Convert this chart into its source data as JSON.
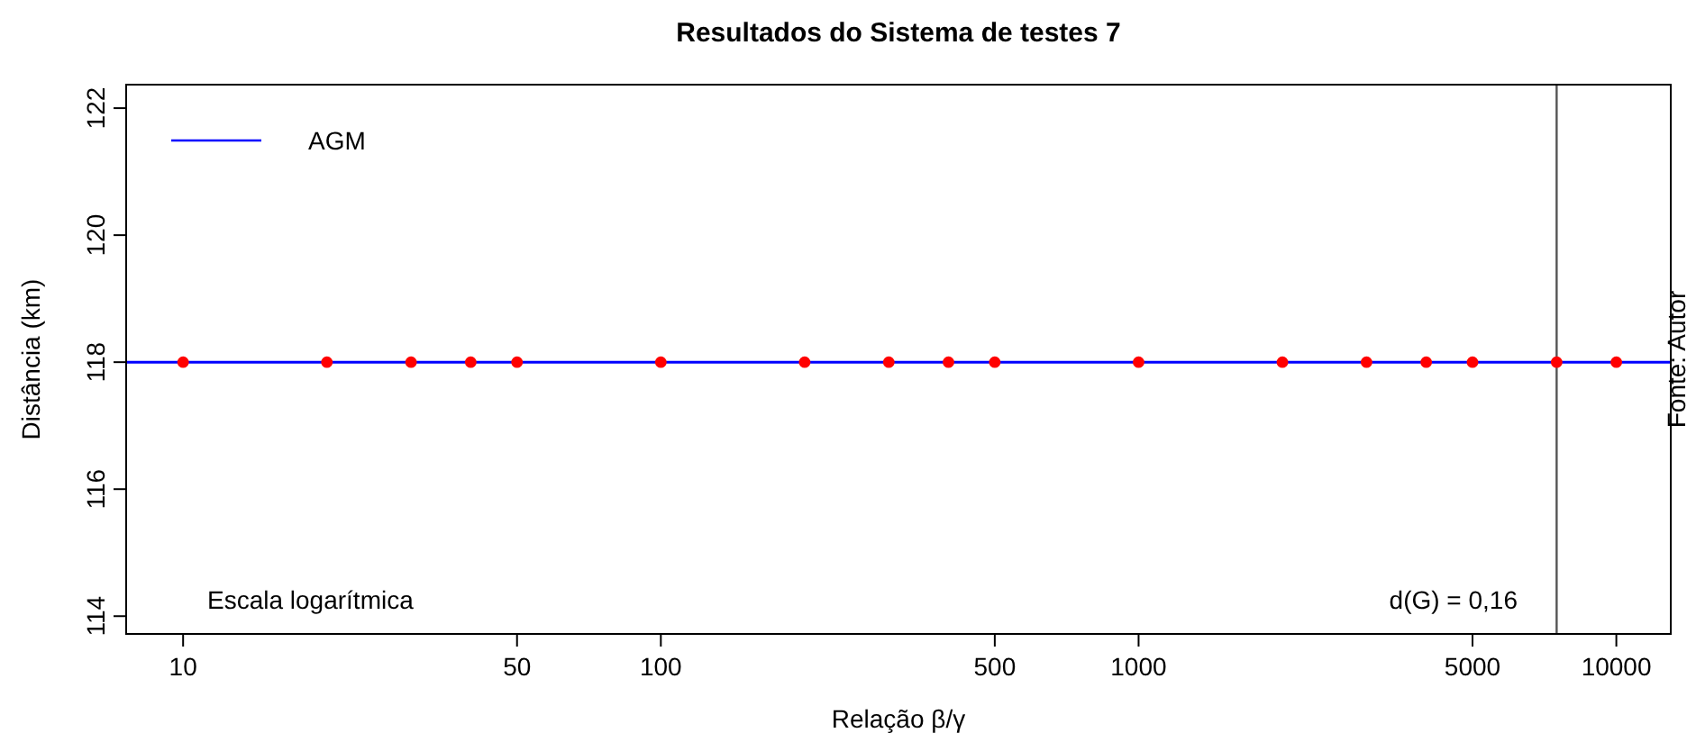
{
  "chart_data": {
    "type": "scatter",
    "title": "Resultados do Sistema de testes 7",
    "xlabel": "Relação  β/γ",
    "ylabel": "Distância (km)",
    "log": "x",
    "xlim": [
      7.6,
      13000
    ],
    "ylim": [
      113.72,
      122.37
    ],
    "xticks": [
      10,
      50,
      100,
      500,
      1000,
      5000,
      10000
    ],
    "yticks": [
      114,
      116,
      118,
      120,
      122
    ],
    "grid": false,
    "legend": "top left",
    "marker": "circle",
    "series": [
      {
        "name": "AGM",
        "type": "line",
        "color": "#0000ff",
        "marker": "none",
        "x": [
          7.6,
          13000
        ],
        "values": [
          118,
          118
        ]
      },
      {
        "color": "#ff0000",
        "x": [
          10,
          20,
          30,
          40,
          50,
          100,
          200,
          300,
          400,
          500,
          1000,
          2000,
          3000,
          4000,
          5000,
          7500,
          10000
        ],
        "values": [
          118,
          118,
          118,
          118,
          118,
          118,
          118,
          118,
          118,
          118,
          118,
          118,
          118,
          118,
          118,
          118,
          118
        ]
      }
    ],
    "ref_lines": [
      {
        "axis": "x",
        "value": 7500,
        "color": "#555555"
      }
    ],
    "annotations": [
      "Escala logarítmica",
      "d(G) = 0,16",
      "Fonte: Autor"
    ]
  }
}
